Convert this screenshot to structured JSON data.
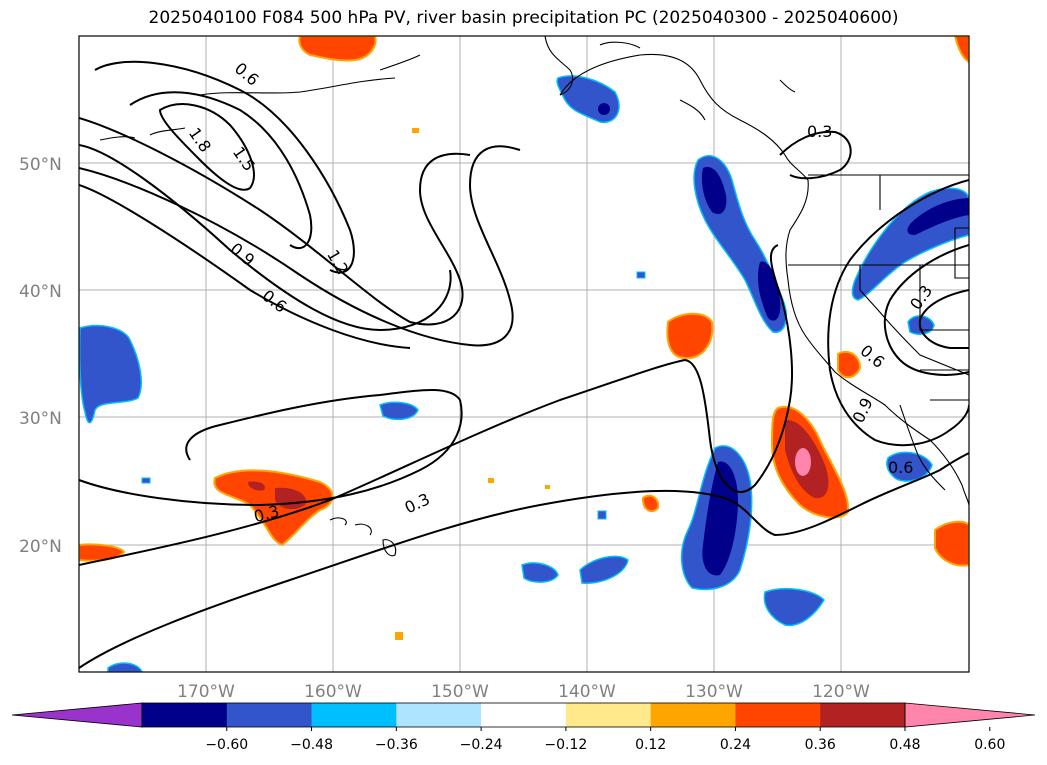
{
  "title": "2025040100 F084 500 hPa PV, river basin precipitation PC (2025040300 - 2025040600)",
  "axes": {
    "lat_labels": [
      "50°N",
      "40°N",
      "30°N",
      "20°N"
    ],
    "lon_labels": [
      "170°W",
      "160°W",
      "150°W",
      "140°W",
      "130°W",
      "120°W"
    ]
  },
  "contour_labels": [
    "0.6",
    "1.8",
    "1.5",
    "0.9",
    "1.2",
    "0.6",
    "0.3",
    "0.3",
    "0.3",
    "0.3",
    "0.6",
    "0.9",
    "0.6"
  ],
  "colorbar": {
    "ticks": [
      "−0.60",
      "−0.48",
      "−0.36",
      "−0.24",
      "−0.12",
      "0.12",
      "0.24",
      "0.36",
      "0.48",
      "0.60"
    ],
    "colors": [
      "#9933cc",
      "#00008b",
      "#3355cc",
      "#00bfff",
      "#aee4ff",
      "#ffffff",
      "#ffe98a",
      "#ffa500",
      "#ff4500",
      "#b22222",
      "#ff85ad"
    ]
  },
  "colors": {
    "grid": "#b0b0b0",
    "contour": "#000000",
    "tick_text": "#808080"
  }
}
